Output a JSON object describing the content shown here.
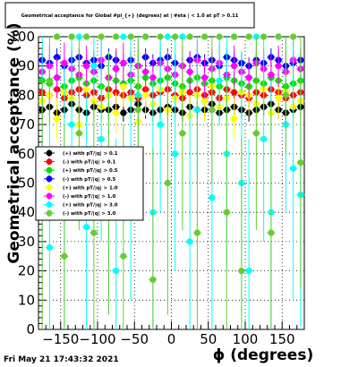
{
  "chart_data": {
    "type": "scatter",
    "title": "Geometrical acceptance for Global #pi_{+} (degrees) at | #eta | < 1.0 at pT > 0.11",
    "xlabel": "ϕ (degrees)",
    "ylabel": "Geometrical acceptance (%)",
    "xlim": [
      -180,
      180
    ],
    "ylim": [
      0,
      100
    ],
    "x_ticks": [
      "−150",
      "−100",
      "−50",
      "0",
      "50",
      "100",
      "150"
    ],
    "y_ticks": [
      "0",
      "10",
      "20",
      "30",
      "40",
      "50",
      "60",
      "70",
      "80",
      "90",
      "100"
    ],
    "grid": true,
    "legend_position": "middle-left",
    "x": [
      -175,
      -165,
      -155,
      -145,
      -135,
      -125,
      -115,
      -105,
      -95,
      -85,
      -75,
      -65,
      -55,
      -45,
      -35,
      -25,
      -15,
      -5,
      5,
      15,
      25,
      35,
      45,
      55,
      65,
      75,
      85,
      95,
      105,
      115,
      125,
      135,
      145,
      155,
      165,
      175
    ],
    "series": [
      {
        "name": "(+) with pT/|q| > 0.1",
        "color": "#000000",
        "values": [
          75,
          76,
          74,
          75,
          77,
          75,
          74,
          76,
          75,
          75,
          76,
          74,
          75,
          77,
          75,
          74,
          75,
          76,
          75,
          74,
          76,
          75,
          75,
          77,
          74,
          75,
          76,
          75,
          74,
          75,
          76,
          77,
          75,
          74,
          75,
          76
        ]
      },
      {
        "name": "(-) with pT/|q| > 0.1",
        "color": "#ff0000",
        "values": [
          81,
          80,
          82,
          79,
          81,
          82,
          80,
          81,
          79,
          82,
          81,
          80,
          81,
          79,
          82,
          80,
          81,
          82,
          80,
          79,
          81,
          82,
          80,
          81,
          79,
          82,
          81,
          80,
          79,
          81,
          80,
          82,
          81,
          79,
          80,
          81
        ]
      },
      {
        "name": "(+) with pT/|q| > 0.5",
        "color": "#00e000",
        "values": [
          85,
          84,
          86,
          83,
          85,
          86,
          84,
          85,
          83,
          86,
          85,
          84,
          85,
          83,
          86,
          84,
          85,
          86,
          84,
          83,
          85,
          86,
          84,
          85,
          83,
          86,
          85,
          84,
          83,
          85,
          84,
          86,
          85,
          83,
          84,
          85
        ]
      },
      {
        "name": "(-) with pT/|q| > 0.5",
        "color": "#0000ff",
        "values": [
          92,
          91,
          93,
          90,
          92,
          93,
          91,
          92,
          90,
          93,
          92,
          91,
          92,
          90,
          93,
          91,
          92,
          93,
          91,
          90,
          92,
          93,
          91,
          92,
          90,
          93,
          92,
          91,
          90,
          92,
          91,
          93,
          92,
          90,
          91,
          92
        ]
      },
      {
        "name": "(+) with pT/|q| > 1.0",
        "color": "#ffff00",
        "values": [
          78,
          80,
          72,
          81,
          79,
          70,
          82,
          78,
          76,
          80,
          74,
          83,
          79,
          71,
          80,
          77,
          82,
          75,
          79,
          81,
          73,
          80,
          78,
          83,
          76,
          79,
          72,
          81,
          80,
          77,
          82,
          74,
          79,
          81,
          76,
          78
        ]
      },
      {
        "name": "(-) with pT/|q| > 1.0",
        "color": "#ff00ff",
        "values": [
          88,
          90,
          86,
          91,
          89,
          87,
          90,
          88,
          92,
          86,
          89,
          91,
          87,
          90,
          88,
          86,
          91,
          89,
          87,
          90,
          88,
          92,
          86,
          89,
          91,
          87,
          90,
          88,
          86,
          91,
          89,
          87,
          90,
          88,
          92,
          89
        ]
      },
      {
        "name": "(+) with pT/|q| > 3.0",
        "color": "#00ffff",
        "values": [
          60,
          28,
          100,
          45,
          70,
          100,
          35,
          90,
          65,
          50,
          20,
          100,
          55,
          80,
          100,
          40,
          70,
          100,
          60,
          100,
          30,
          75,
          100,
          45,
          85,
          60,
          100,
          50,
          20,
          100,
          65,
          40,
          100,
          70,
          55,
          46
        ]
      },
      {
        "name": "(-) with pT/|q| > 3.0",
        "color": "#66cc33",
        "values": [
          40,
          85,
          100,
          25,
          100,
          67,
          100,
          33,
          100,
          50,
          100,
          25,
          100,
          75,
          100,
          17,
          100,
          50,
          100,
          67,
          100,
          33,
          100,
          75,
          100,
          40,
          100,
          20,
          100,
          67,
          100,
          33,
          100,
          80,
          100,
          57
        ]
      }
    ]
  },
  "footer": {
    "date": "Fri May 21 17:43:32 2021"
  }
}
